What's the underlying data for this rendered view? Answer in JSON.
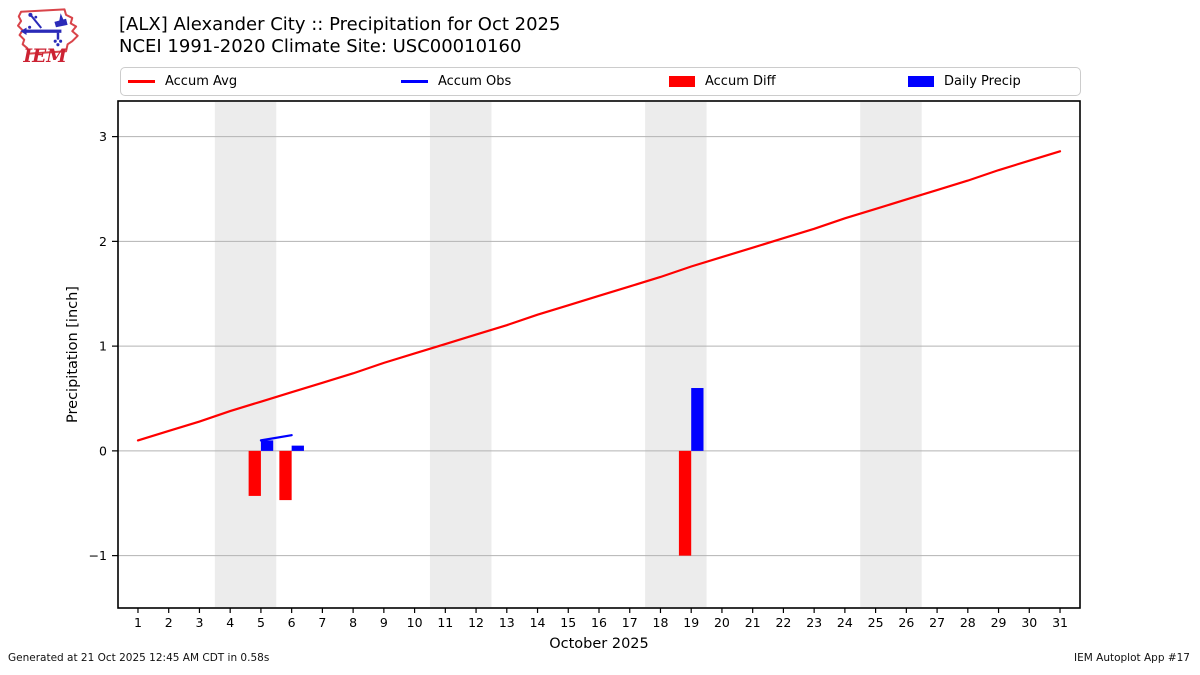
{
  "header": {
    "title_line1": "[ALX] Alexander City :: Precipitation for Oct 2025",
    "title_line2": "NCEI 1991-2020 Climate Site: USC00010160",
    "logo_text": "IEM"
  },
  "legend": {
    "items": [
      {
        "label": "Accum Avg",
        "swatch": "line",
        "color": "#ff0000"
      },
      {
        "label": "Accum Obs",
        "swatch": "line",
        "color": "#0000ff"
      },
      {
        "label": "Accum Diff",
        "swatch": "rect",
        "color": "#ff0000"
      },
      {
        "label": "Daily Precip",
        "swatch": "rect",
        "color": "#0000ff"
      }
    ]
  },
  "footer": {
    "generated": "Generated at 21 Oct 2025 12:45 AM CDT in 0.58s",
    "app": "IEM Autoplot App #17"
  },
  "chart_data": {
    "type": "line+bar",
    "title": "[ALX] Alexander City :: Precipitation for Oct 2025",
    "subtitle": "NCEI 1991-2020 Climate Site: USC00010160",
    "xlabel": "October 2025",
    "ylabel": "Precipitation [inch]",
    "xlim": [
      0.35,
      31.65
    ],
    "ylim": [
      -1.5,
      3.34
    ],
    "x_ticks": [
      1,
      2,
      3,
      4,
      5,
      6,
      7,
      8,
      9,
      10,
      11,
      12,
      13,
      14,
      15,
      16,
      17,
      18,
      19,
      20,
      21,
      22,
      23,
      24,
      25,
      26,
      27,
      28,
      29,
      30,
      31
    ],
    "y_ticks": [
      -1,
      0,
      1,
      2,
      3
    ],
    "grid": "horizontal",
    "weekend_bands": [
      [
        3.5,
        5.5
      ],
      [
        10.5,
        12.5
      ],
      [
        17.5,
        19.5
      ],
      [
        24.5,
        26.5
      ]
    ],
    "band_color": "#ececec",
    "gridline_color": "#b3b3b3",
    "series": [
      {
        "name": "Accum Avg",
        "type": "line",
        "color": "#ff0000",
        "x": [
          1,
          2,
          3,
          4,
          5,
          6,
          7,
          8,
          9,
          10,
          11,
          12,
          13,
          14,
          15,
          16,
          17,
          18,
          19,
          20,
          21,
          22,
          23,
          24,
          25,
          26,
          27,
          28,
          29,
          30,
          31
        ],
        "y": [
          0.1,
          0.19,
          0.28,
          0.38,
          0.47,
          0.56,
          0.65,
          0.74,
          0.84,
          0.93,
          1.02,
          1.11,
          1.2,
          1.3,
          1.39,
          1.48,
          1.57,
          1.66,
          1.76,
          1.85,
          1.94,
          2.03,
          2.12,
          2.22,
          2.31,
          2.4,
          2.49,
          2.58,
          2.68,
          2.77,
          2.86
        ]
      },
      {
        "name": "Accum Obs",
        "type": "line",
        "color": "#0000ff",
        "x": [
          5,
          6
        ],
        "y": [
          0.1,
          0.15
        ]
      },
      {
        "name": "Accum Diff",
        "type": "bar",
        "color": "#ff0000",
        "span": [
          -0.4,
          0
        ],
        "x": [
          5,
          6,
          19
        ],
        "y": [
          -0.43,
          -0.47,
          -1.0
        ]
      },
      {
        "name": "Daily Precip",
        "type": "bar",
        "color": "#0000ff",
        "span": [
          0,
          0.4
        ],
        "x": [
          5,
          6,
          19
        ],
        "y": [
          0.1,
          0.05,
          0.6
        ]
      }
    ]
  }
}
